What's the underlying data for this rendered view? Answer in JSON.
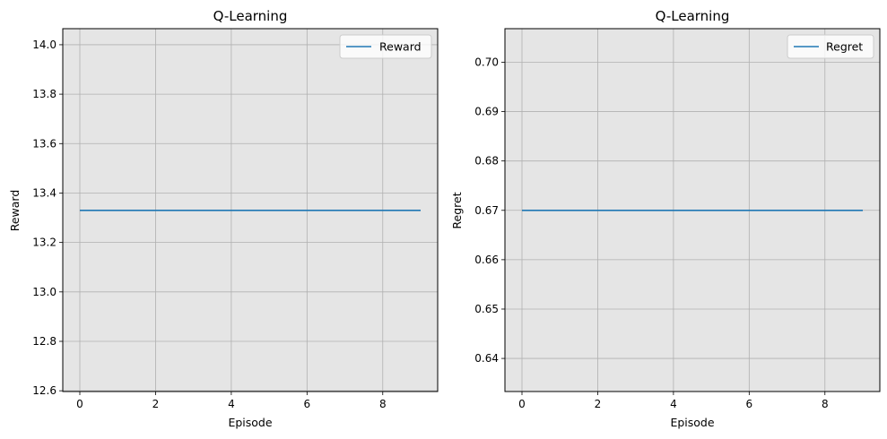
{
  "chart_data": [
    {
      "type": "line",
      "title": "Q-Learning",
      "xlabel": "Episode",
      "ylabel": "Reward",
      "x": [
        0,
        1,
        2,
        3,
        4,
        5,
        6,
        7,
        8,
        9
      ],
      "series": [
        {
          "name": "Reward",
          "color": "#1f77b4",
          "values": [
            13.33,
            13.33,
            13.33,
            13.33,
            13.33,
            13.33,
            13.33,
            13.33,
            13.33,
            13.33
          ]
        }
      ],
      "xlim": [
        -0.45,
        9.45
      ],
      "ylim": [
        12.597,
        14.065
      ],
      "xticks": [
        0,
        2,
        4,
        6,
        8
      ],
      "yticks": [
        12.6,
        12.8,
        13.0,
        13.2,
        13.4,
        13.6,
        13.8,
        14.0
      ],
      "ytick_labels": [
        "12.6",
        "12.8",
        "13.0",
        "13.2",
        "13.4",
        "13.6",
        "13.8",
        "14.0"
      ],
      "grid": true,
      "legend": "top-right",
      "background": "#e5e5e5"
    },
    {
      "type": "line",
      "title": "Q-Learning",
      "xlabel": "Episode",
      "ylabel": "Regret",
      "x": [
        0,
        1,
        2,
        3,
        4,
        5,
        6,
        7,
        8,
        9
      ],
      "series": [
        {
          "name": "Regret",
          "color": "#1f77b4",
          "values": [
            0.67,
            0.67,
            0.67,
            0.67,
            0.67,
            0.67,
            0.67,
            0.67,
            0.67,
            0.67
          ]
        }
      ],
      "xlim": [
        -0.45,
        9.45
      ],
      "ylim": [
        0.6333,
        0.7068
      ],
      "xticks": [
        0,
        2,
        4,
        6,
        8
      ],
      "yticks": [
        0.64,
        0.65,
        0.66,
        0.67,
        0.68,
        0.69,
        0.7
      ],
      "ytick_labels": [
        "0.64",
        "0.65",
        "0.66",
        "0.67",
        "0.68",
        "0.69",
        "0.70"
      ],
      "grid": true,
      "legend": "top-right",
      "background": "#e5e5e5"
    }
  ]
}
